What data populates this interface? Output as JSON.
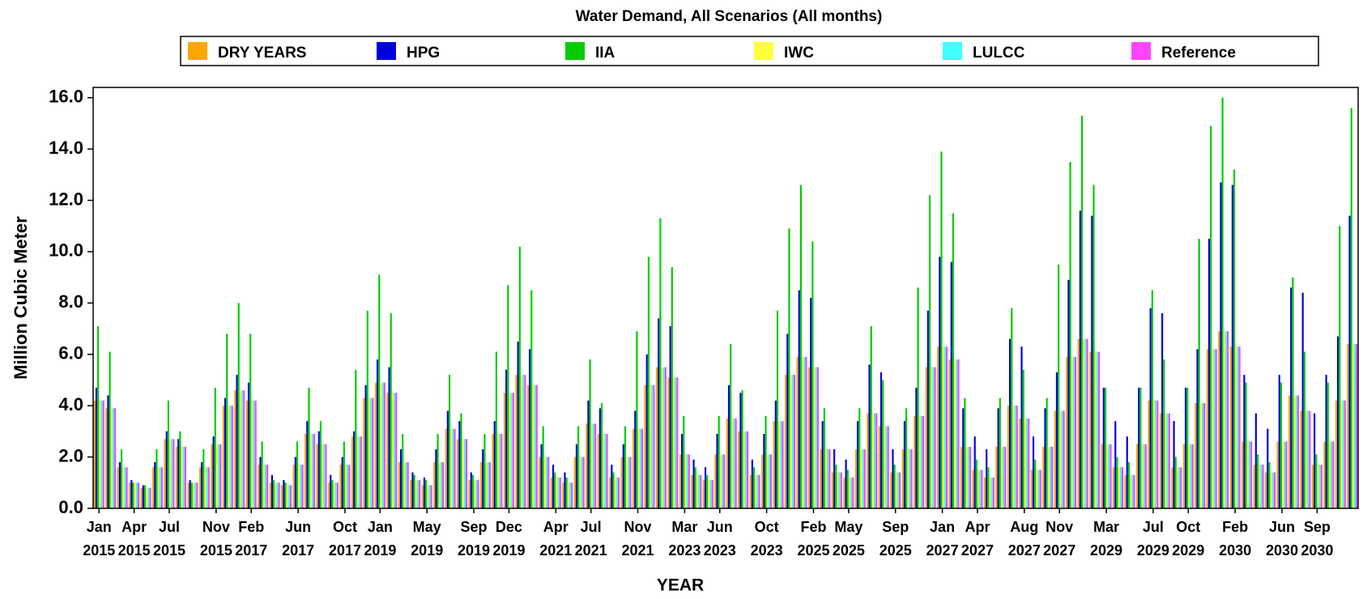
{
  "chart_data": {
    "type": "bar",
    "title": "Water Demand, All Scenarios (All months)",
    "x_label": "YEAR",
    "y_label": "Million Cubic Meter",
    "categories": [
      "Jan 2015",
      null,
      null,
      "Apr 2015",
      null,
      null,
      "Jul 2015",
      null,
      null,
      null,
      "Nov 2015",
      null,
      null,
      "Feb 2017",
      null,
      null,
      null,
      "Jun 2017",
      null,
      null,
      null,
      "Oct 2017",
      null,
      null,
      "Jan 2019",
      null,
      null,
      null,
      "May 2019",
      null,
      null,
      null,
      "Sep 2019",
      null,
      null,
      "Dec 2019",
      null,
      null,
      null,
      "Apr 2021",
      null,
      null,
      "Jul 2021",
      null,
      null,
      null,
      "Nov 2021",
      null,
      null,
      null,
      "Mar 2023",
      null,
      null,
      "Jun 2023",
      null,
      null,
      null,
      "Oct 2023",
      null,
      null,
      null,
      "Feb 2025",
      null,
      null,
      "May 2025",
      null,
      null,
      null,
      "Sep 2025",
      null,
      null,
      null,
      "Jan 2027",
      null,
      null,
      "Apr 2027",
      null,
      null,
      null,
      "Aug 2027",
      null,
      null,
      "Nov 2027",
      null,
      null,
      null,
      "Mar 2029",
      null,
      null,
      null,
      "Jul 2029",
      null,
      null,
      "Oct 2029",
      null,
      null,
      null,
      "Feb 2030",
      null,
      null,
      null,
      "Jun 2030",
      null,
      null,
      "Sep 2030",
      null,
      null,
      null
    ],
    "series": [
      {
        "name": "DRY YEARS",
        "color": "#ffa500",
        "values": [
          4.2,
          3.9,
          1.6,
          1.0,
          0.8,
          1.6,
          2.7,
          2.4,
          1.0,
          1.6,
          2.5,
          4.0,
          4.6,
          4.2,
          1.7,
          1.0,
          0.9,
          1.7,
          2.9,
          2.5,
          1.0,
          1.7,
          2.8,
          4.3,
          4.9,
          4.5,
          1.8,
          1.1,
          0.9,
          1.8,
          3.1,
          2.7,
          1.1,
          1.8,
          2.9,
          4.5,
          5.2,
          4.8,
          2.0,
          1.2,
          1.0,
          2.0,
          3.3,
          2.9,
          1.2,
          2.0,
          3.1,
          4.8,
          5.5,
          5.1,
          2.1,
          1.3,
          1.1,
          2.1,
          3.5,
          3.0,
          1.3,
          2.1,
          3.4,
          5.2,
          5.9,
          5.5,
          2.3,
          1.4,
          1.2,
          2.3,
          3.7,
          3.2,
          1.4,
          2.3,
          3.6,
          5.5,
          6.3,
          5.8,
          2.4,
          1.5,
          1.2,
          2.4,
          4.0,
          3.5,
          1.5,
          2.4,
          3.8,
          5.9,
          6.6,
          6.1,
          2.5,
          1.6,
          1.3,
          2.5,
          4.2,
          3.7,
          1.6,
          2.5,
          4.1,
          6.2,
          6.9,
          6.3,
          2.6,
          1.7,
          1.4,
          2.6,
          4.4,
          3.8,
          1.7,
          2.6,
          4.2,
          6.4
        ]
      },
      {
        "name": "HPG",
        "color": "#0000dd",
        "values": [
          4.7,
          4.4,
          1.8,
          1.1,
          0.9,
          1.8,
          3.0,
          2.7,
          1.1,
          1.8,
          2.8,
          4.3,
          5.2,
          4.9,
          2.0,
          1.3,
          1.1,
          2.0,
          3.4,
          3.0,
          1.3,
          2.0,
          3.0,
          4.8,
          5.8,
          5.5,
          2.3,
          1.4,
          1.2,
          2.3,
          3.8,
          3.4,
          1.4,
          2.3,
          3.4,
          5.4,
          6.5,
          6.2,
          2.5,
          1.7,
          1.4,
          2.5,
          4.2,
          3.9,
          1.7,
          2.5,
          3.8,
          6.0,
          7.4,
          7.1,
          2.9,
          1.9,
          1.6,
          2.9,
          4.8,
          4.5,
          1.9,
          2.9,
          4.2,
          6.8,
          8.5,
          8.2,
          3.4,
          2.3,
          1.9,
          3.4,
          5.6,
          5.3,
          2.3,
          3.4,
          4.7,
          7.7,
          9.8,
          9.6,
          3.9,
          2.8,
          2.3,
          3.9,
          6.6,
          6.3,
          2.8,
          3.9,
          5.3,
          8.9,
          11.6,
          11.4,
          4.7,
          3.4,
          2.8,
          4.7,
          7.8,
          7.6,
          3.4,
          4.7,
          6.2,
          10.5,
          12.7,
          12.6,
          5.2,
          3.7,
          3.1,
          5.2,
          8.6,
          8.4,
          3.7,
          5.2,
          6.7,
          11.4
        ]
      },
      {
        "name": "IIA",
        "color": "#00cc00",
        "values": [
          7.1,
          6.1,
          2.3,
          1.0,
          0.9,
          2.3,
          4.2,
          3.0,
          1.0,
          2.3,
          4.7,
          6.8,
          8.0,
          6.8,
          2.6,
          1.1,
          1.0,
          2.6,
          4.7,
          3.4,
          1.1,
          2.6,
          5.4,
          7.7,
          9.1,
          7.6,
          2.9,
          1.3,
          1.1,
          2.9,
          5.2,
          3.7,
          1.3,
          2.9,
          6.1,
          8.7,
          10.2,
          8.5,
          3.2,
          1.4,
          1.2,
          3.2,
          5.8,
          4.1,
          1.4,
          3.2,
          6.9,
          9.8,
          11.3,
          9.4,
          3.6,
          1.6,
          1.3,
          3.6,
          6.4,
          4.6,
          1.6,
          3.6,
          7.7,
          10.9,
          12.6,
          10.4,
          3.9,
          1.7,
          1.5,
          3.9,
          7.1,
          5.0,
          1.7,
          3.9,
          8.6,
          12.2,
          13.9,
          11.5,
          4.3,
          1.9,
          1.6,
          4.3,
          7.8,
          5.4,
          1.9,
          4.3,
          9.5,
          13.5,
          15.3,
          12.6,
          4.7,
          2.0,
          1.8,
          4.7,
          8.5,
          5.8,
          2.0,
          4.7,
          10.5,
          14.9,
          16.0,
          13.2,
          4.9,
          2.1,
          1.8,
          4.9,
          9.0,
          6.1,
          2.1,
          4.9,
          11.0,
          15.6
        ]
      },
      {
        "name": "IWC",
        "color": "#ffff40",
        "values": [
          4.2,
          3.9,
          1.6,
          1.0,
          0.8,
          1.6,
          2.7,
          2.4,
          1.0,
          1.6,
          2.5,
          4.0,
          4.6,
          4.2,
          1.7,
          1.0,
          0.9,
          1.7,
          2.9,
          2.5,
          1.0,
          1.7,
          2.8,
          4.3,
          4.9,
          4.5,
          1.8,
          1.1,
          0.9,
          1.8,
          3.1,
          2.7,
          1.1,
          1.8,
          2.9,
          4.5,
          5.2,
          4.8,
          2.0,
          1.2,
          1.0,
          2.0,
          3.3,
          2.9,
          1.2,
          2.0,
          3.1,
          4.8,
          5.5,
          5.1,
          2.1,
          1.3,
          1.1,
          2.1,
          3.5,
          3.0,
          1.3,
          2.1,
          3.4,
          5.2,
          5.9,
          5.5,
          2.3,
          1.4,
          1.2,
          2.3,
          3.7,
          3.2,
          1.4,
          2.3,
          3.6,
          5.5,
          6.3,
          5.8,
          2.4,
          1.5,
          1.2,
          2.4,
          4.0,
          3.5,
          1.5,
          2.4,
          3.8,
          5.9,
          6.6,
          6.1,
          2.5,
          1.6,
          1.3,
          2.5,
          4.2,
          3.7,
          1.6,
          2.5,
          4.1,
          6.2,
          6.9,
          6.3,
          2.6,
          1.7,
          1.4,
          2.6,
          4.4,
          3.8,
          1.7,
          2.6,
          4.2,
          6.4
        ]
      },
      {
        "name": "LULCC",
        "color": "#40ffff",
        "values": [
          4.2,
          3.9,
          1.6,
          1.0,
          0.8,
          1.6,
          2.7,
          2.4,
          1.0,
          1.6,
          2.5,
          4.0,
          4.6,
          4.2,
          1.7,
          1.0,
          0.9,
          1.7,
          2.9,
          2.5,
          1.0,
          1.7,
          2.8,
          4.3,
          4.9,
          4.5,
          1.8,
          1.1,
          0.9,
          1.8,
          3.1,
          2.7,
          1.1,
          1.8,
          2.9,
          4.5,
          5.2,
          4.8,
          2.0,
          1.2,
          1.0,
          2.0,
          3.3,
          2.9,
          1.2,
          2.0,
          3.1,
          4.8,
          5.5,
          5.1,
          2.1,
          1.3,
          1.1,
          2.1,
          3.5,
          3.0,
          1.3,
          2.1,
          3.4,
          5.2,
          5.9,
          5.5,
          2.3,
          1.4,
          1.2,
          2.3,
          3.7,
          3.2,
          1.4,
          2.3,
          3.6,
          5.5,
          6.3,
          5.8,
          2.4,
          1.5,
          1.2,
          2.4,
          4.0,
          3.5,
          1.5,
          2.4,
          3.8,
          5.9,
          6.6,
          6.1,
          2.5,
          1.6,
          1.3,
          2.5,
          4.2,
          3.7,
          1.6,
          2.5,
          4.1,
          6.2,
          6.9,
          6.3,
          2.6,
          1.7,
          1.4,
          2.6,
          4.4,
          3.8,
          1.7,
          2.6,
          4.2,
          6.4
        ]
      },
      {
        "name": "Reference",
        "color": "#ff44ff",
        "values": [
          4.2,
          3.9,
          1.6,
          1.0,
          0.8,
          1.6,
          2.7,
          2.4,
          1.0,
          1.6,
          2.5,
          4.0,
          4.6,
          4.2,
          1.7,
          1.0,
          0.9,
          1.7,
          2.9,
          2.5,
          1.0,
          1.7,
          2.8,
          4.3,
          4.9,
          4.5,
          1.8,
          1.1,
          0.9,
          1.8,
          3.1,
          2.7,
          1.1,
          1.8,
          2.9,
          4.5,
          5.2,
          4.8,
          2.0,
          1.2,
          1.0,
          2.0,
          3.3,
          2.9,
          1.2,
          2.0,
          3.1,
          4.8,
          5.5,
          5.1,
          2.1,
          1.3,
          1.1,
          2.1,
          3.5,
          3.0,
          1.3,
          2.1,
          3.4,
          5.2,
          5.9,
          5.5,
          2.3,
          1.4,
          1.2,
          2.3,
          3.7,
          3.2,
          1.4,
          2.3,
          3.6,
          5.5,
          6.3,
          5.8,
          2.4,
          1.5,
          1.2,
          2.4,
          4.0,
          3.5,
          1.5,
          2.4,
          3.8,
          5.9,
          6.6,
          6.1,
          2.5,
          1.6,
          1.3,
          2.5,
          4.2,
          3.7,
          1.6,
          2.5,
          4.1,
          6.2,
          6.9,
          6.3,
          2.6,
          1.7,
          1.4,
          2.6,
          4.4,
          3.8,
          1.7,
          2.6,
          4.2,
          6.4
        ]
      }
    ],
    "ylim": [
      0,
      16.4
    ],
    "yticks": [
      {
        "value": 0,
        "label": "0.0"
      },
      {
        "value": 2,
        "label": "2.0"
      },
      {
        "value": 4,
        "label": "4.0"
      },
      {
        "value": 6,
        "label": "6.0"
      },
      {
        "value": 8,
        "label": "8.0"
      },
      {
        "value": 10,
        "label": "10.0"
      },
      {
        "value": 12,
        "label": "12.0"
      },
      {
        "value": 14,
        "label": "14.0"
      },
      {
        "value": 16,
        "label": "16.0"
      }
    ],
    "legend": "top",
    "grid": false
  }
}
